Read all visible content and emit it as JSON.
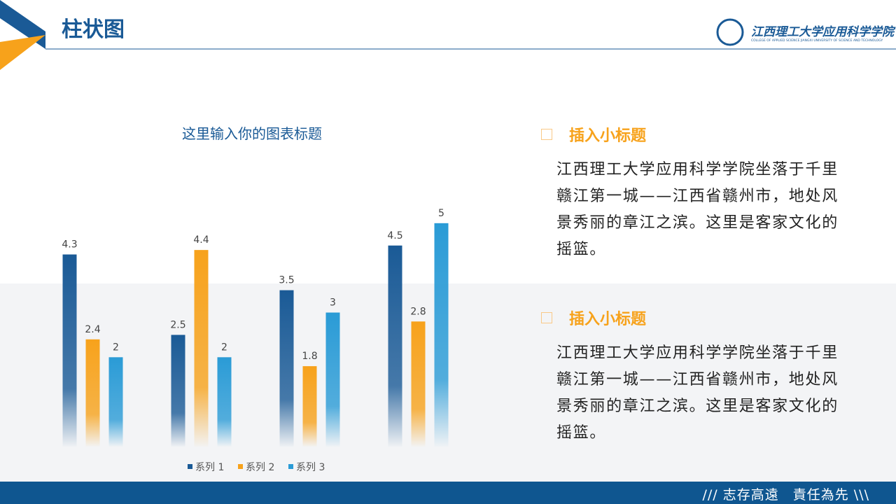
{
  "header": {
    "title": "柱状图",
    "logo_name": "江西理工大学应用科学学院",
    "logo_subtitle": "COLLEGE OF APPLIED SCIENCE JIANGXI UNIVERSITY OF SCIENCE AND TECHNOLOGY"
  },
  "chart_data": {
    "type": "bar",
    "title": "这里输入你的图表标题",
    "categories": [
      null,
      null,
      null,
      null
    ],
    "series": [
      {
        "name": "系列 1",
        "color": "#1a5a96",
        "values": [
          4.3,
          2.5,
          3.5,
          4.5
        ]
      },
      {
        "name": "系列 2",
        "color": "#f7a21b",
        "values": [
          2.4,
          4.4,
          1.8,
          2.8
        ]
      },
      {
        "name": "系列 3",
        "color": "#2a9bd6",
        "values": [
          2,
          2,
          3,
          5
        ]
      }
    ],
    "ylim": [
      0,
      6
    ],
    "legend": "bottom"
  },
  "sections": [
    {
      "heading": "插入小标题",
      "text": "江西理工大学应用科学学院坐落于千里赣江第一城——江西省赣州市，地处风景秀丽的章江之滨。这里是客家文化的摇篮。"
    },
    {
      "heading": "插入小标题",
      "text": "江西理工大学应用科学学院坐落于千里赣江第一城——江西省赣州市，地处风景秀丽的章江之滨。这里是客家文化的摇篮。"
    }
  ],
  "footer": {
    "motto": "/// 志存高遠　責任為先 \\\\\\"
  }
}
